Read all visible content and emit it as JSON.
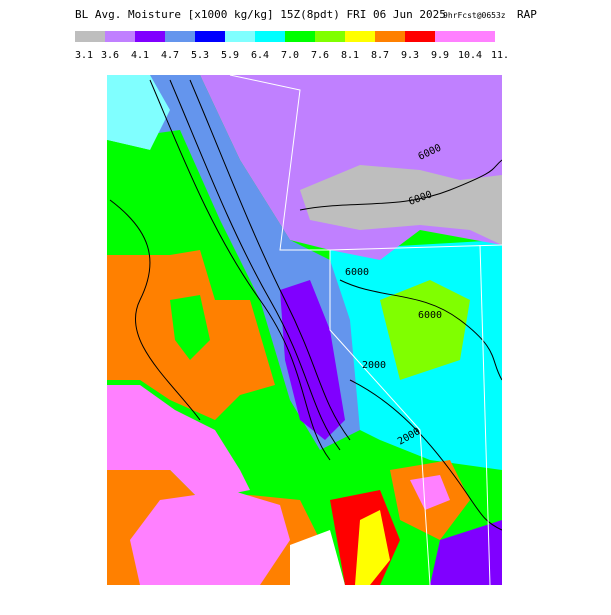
{
  "header": {
    "title": "BL Avg. Moisture [x1000 kg/kg] 15Z(8pdt) FRI 06 Jun 2025",
    "forecast": "9hrFcst@0653z",
    "model": "RAP"
  },
  "legend": {
    "labels": [
      "3.1",
      "3.6",
      "4.1",
      "4.7",
      "5.3",
      "5.9",
      "6.4",
      "7.0",
      "7.6",
      "8.1",
      "8.7",
      "9.3",
      "9.9",
      "10.4",
      "11."
    ],
    "colors": [
      "#bebebe",
      "#c080ff",
      "#8000ff",
      "#6495ed",
      "#0000ff",
      "#80ffff",
      "#00ffff",
      "#00ff00",
      "#80ff00",
      "#ffff00",
      "#ff8000",
      "#ff0000",
      "#ff80ff",
      "#ff80ff"
    ]
  },
  "map": {
    "contour_labels": [
      "6000",
      "6000",
      "6000",
      "6000",
      "2000",
      "2000"
    ]
  }
}
